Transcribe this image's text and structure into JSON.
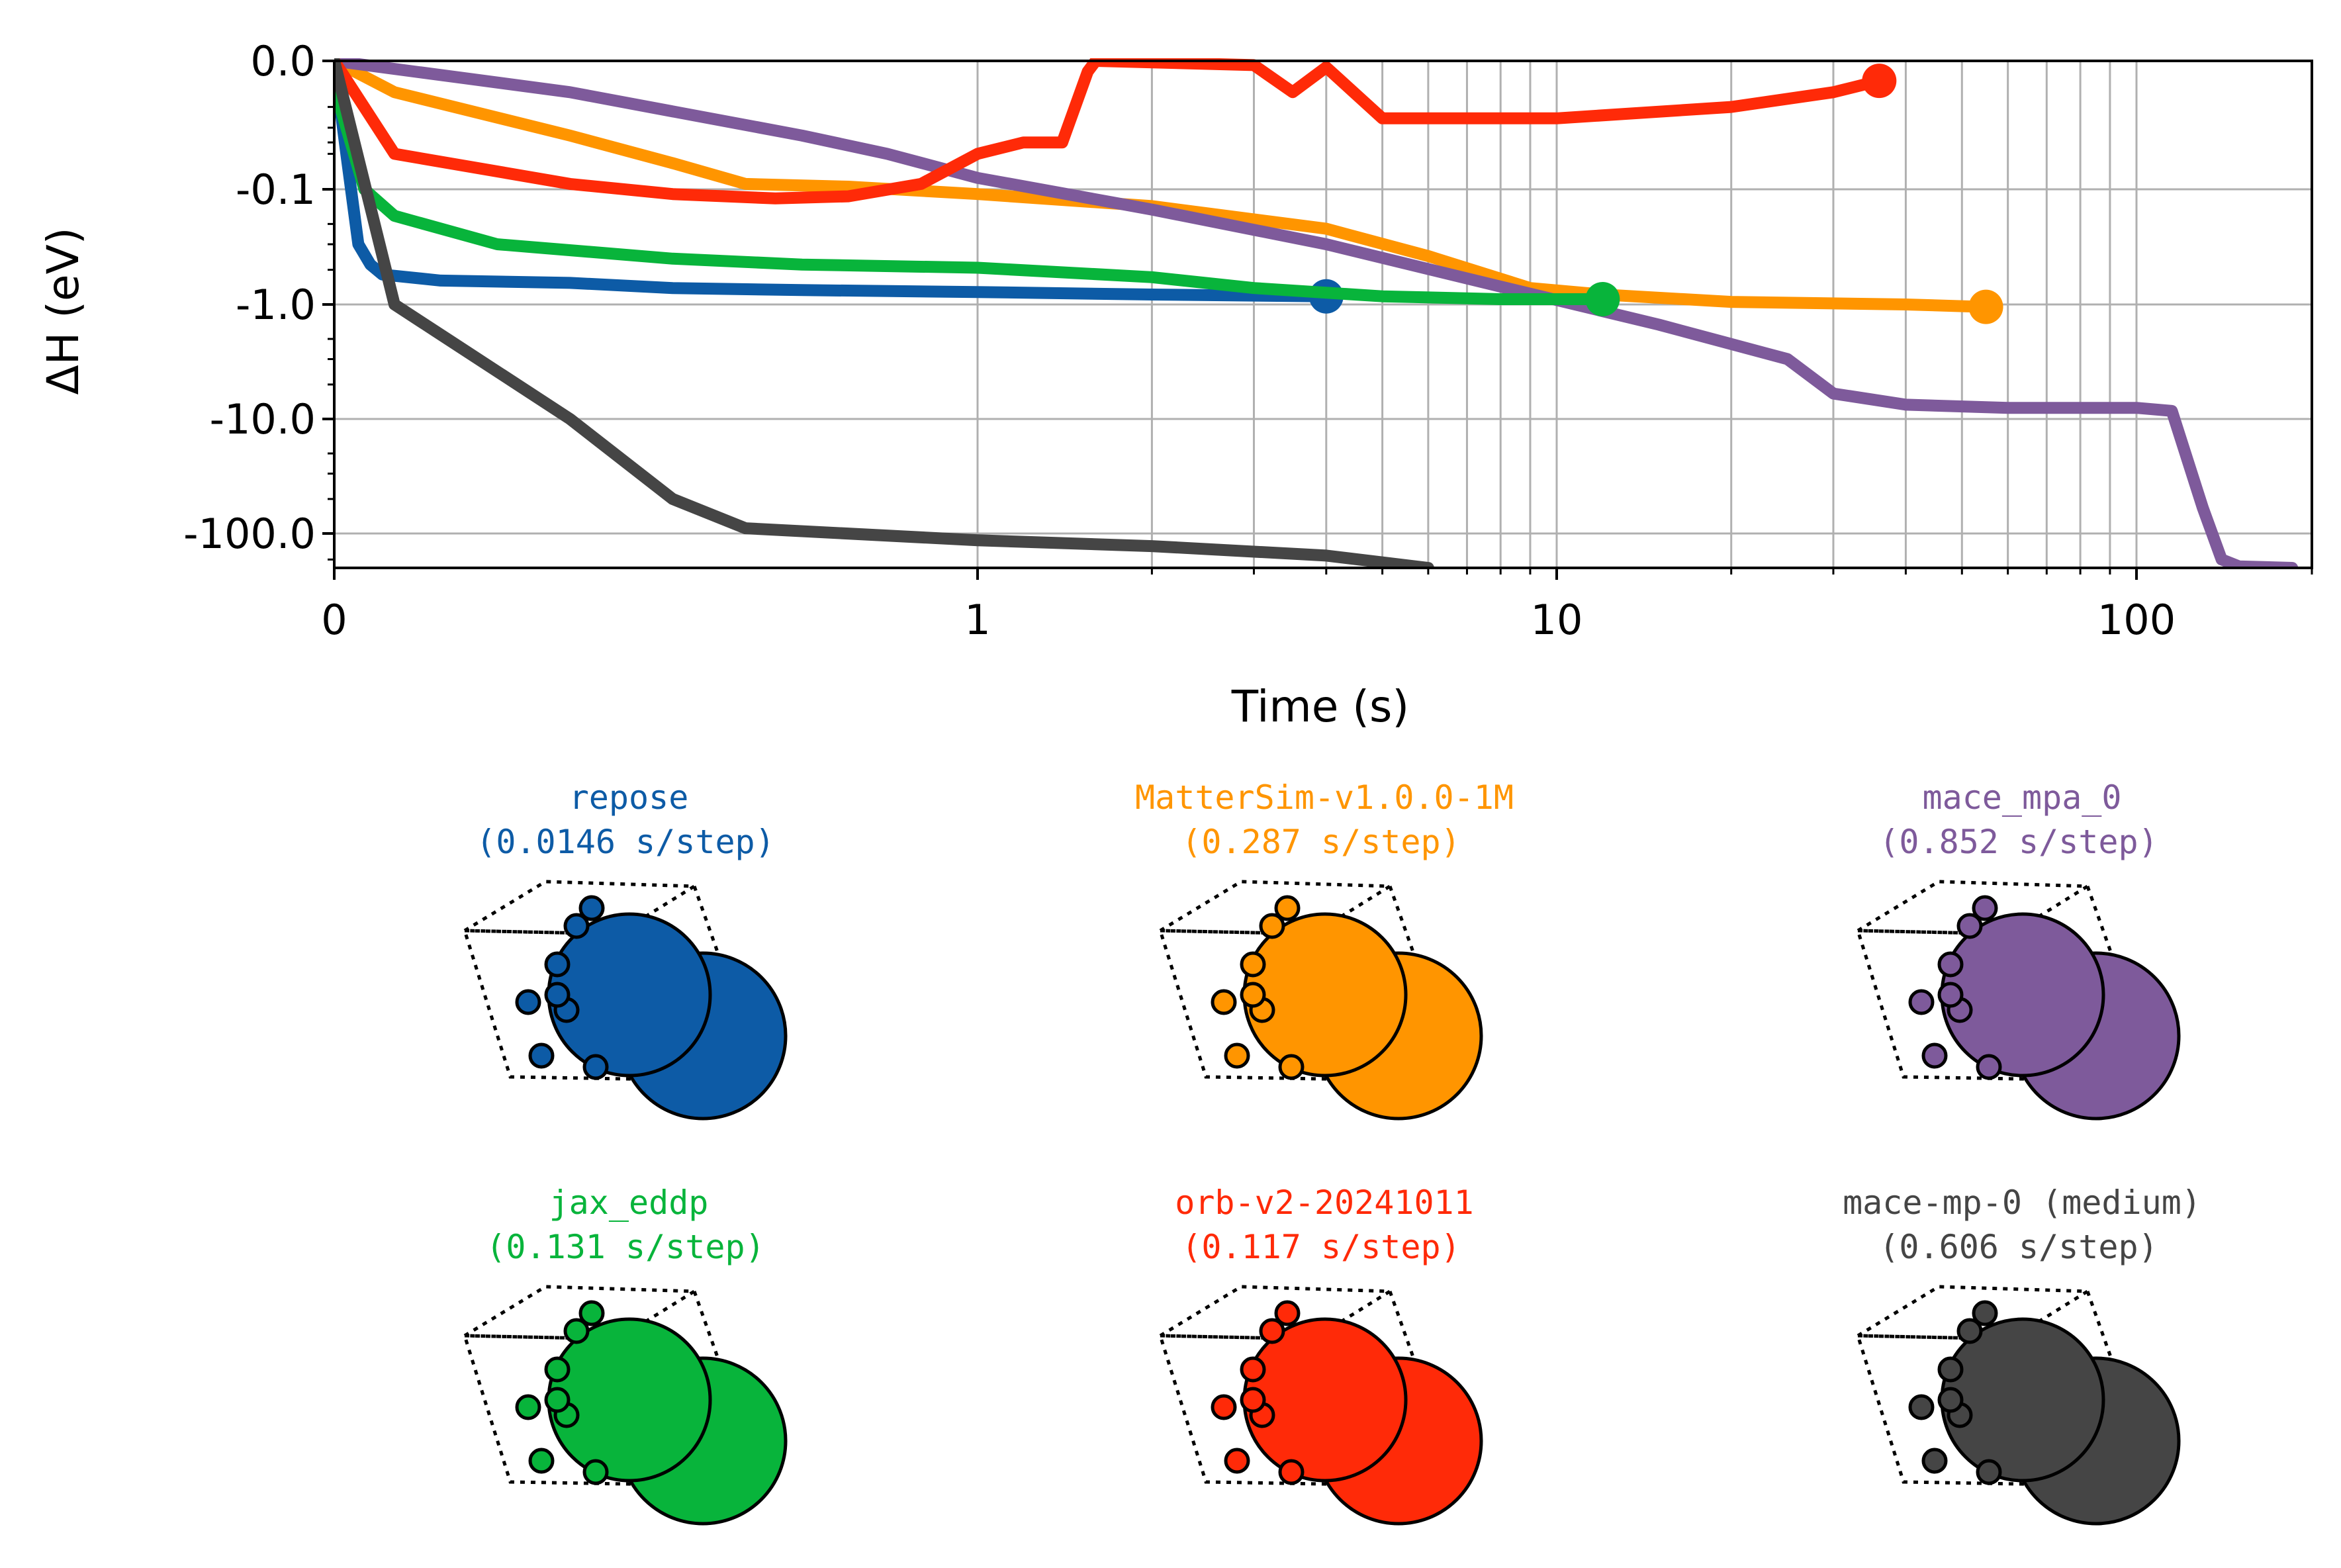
{
  "chart_data": {
    "type": "line",
    "xlabel": "Time (s)",
    "ylabel": "ΔH (eV)",
    "x_scale": "symlog",
    "y_scale": "symlog",
    "xlim": [
      0,
      200
    ],
    "ylim": [
      -250,
      0
    ],
    "grid": true,
    "x_ticks": [
      {
        "v": 0,
        "label": "0"
      },
      {
        "v": 1,
        "label": "1"
      },
      {
        "v": 10,
        "label": "10"
      },
      {
        "v": 100,
        "label": "100"
      }
    ],
    "y_ticks": [
      {
        "v": 0,
        "label": "0.0"
      },
      {
        "v": -0.1,
        "label": "-0.1"
      },
      {
        "v": -1,
        "label": "-1.0"
      },
      {
        "v": -10,
        "label": "-10.0"
      },
      {
        "v": -100,
        "label": "-100.0"
      }
    ],
    "series": [
      {
        "color": "#0d5ba6",
        "end_marker": true,
        "points": [
          [
            0,
            0
          ],
          [
            0.02,
            -0.05
          ],
          [
            0.04,
            -0.3
          ],
          [
            0.06,
            -0.45
          ],
          [
            0.08,
            -0.55
          ],
          [
            0.12,
            -0.62
          ],
          [
            0.2,
            -0.65
          ],
          [
            0.3,
            -0.72
          ],
          [
            0.5,
            -0.75
          ],
          [
            1,
            -0.78
          ],
          [
            2,
            -0.82
          ],
          [
            4,
            -0.85
          ]
        ]
      },
      {
        "color": "#ff9500",
        "end_marker": true,
        "points": [
          [
            0,
            0
          ],
          [
            0.1,
            -0.015
          ],
          [
            0.2,
            -0.035
          ],
          [
            0.3,
            -0.06
          ],
          [
            0.4,
            -0.09
          ],
          [
            0.6,
            -0.095
          ],
          [
            1,
            -0.11
          ],
          [
            2,
            -0.14
          ],
          [
            4,
            -0.22
          ],
          [
            6,
            -0.38
          ],
          [
            9,
            -0.72
          ],
          [
            12,
            -0.82
          ],
          [
            20,
            -0.95
          ],
          [
            40,
            -1.0
          ],
          [
            55,
            -1.05
          ]
        ]
      },
      {
        "color": "#7e5a9b",
        "end_marker": false,
        "points": [
          [
            0,
            0
          ],
          [
            0.2,
            -0.015
          ],
          [
            0.5,
            -0.035
          ],
          [
            0.7,
            -0.05
          ],
          [
            1,
            -0.08
          ],
          [
            2,
            -0.15
          ],
          [
            4,
            -0.3
          ],
          [
            8,
            -0.7
          ],
          [
            15,
            -1.5
          ],
          [
            25,
            -3
          ],
          [
            30,
            -6
          ],
          [
            40,
            -7.5
          ],
          [
            60,
            -8
          ],
          [
            100,
            -8
          ],
          [
            115,
            -8.5
          ],
          [
            130,
            -60
          ],
          [
            140,
            -200
          ],
          [
            150,
            -240
          ],
          [
            185,
            -250
          ]
        ]
      },
      {
        "color": "#08b43b",
        "end_marker": true,
        "points": [
          [
            0,
            0
          ],
          [
            0.01,
            -0.02
          ],
          [
            0.05,
            -0.1
          ],
          [
            0.1,
            -0.17
          ],
          [
            0.15,
            -0.3
          ],
          [
            0.3,
            -0.4
          ],
          [
            0.5,
            -0.45
          ],
          [
            1,
            -0.48
          ],
          [
            2,
            -0.58
          ],
          [
            3,
            -0.72
          ],
          [
            5,
            -0.85
          ],
          [
            8,
            -0.9
          ],
          [
            12,
            -0.9
          ]
        ]
      },
      {
        "color": "#ff2a08",
        "end_marker": true,
        "points": [
          [
            0,
            0
          ],
          [
            0.1,
            -0.05
          ],
          [
            0.2,
            -0.09
          ],
          [
            0.3,
            -0.11
          ],
          [
            0.45,
            -0.12
          ],
          [
            0.6,
            -0.115
          ],
          [
            0.8,
            -0.09
          ],
          [
            1,
            -0.05
          ],
          [
            1.2,
            -0.04
          ],
          [
            1.4,
            -0.04
          ],
          [
            1.55,
            -0.01
          ],
          [
            1.6,
            0
          ],
          [
            3,
            -0.004
          ],
          [
            3.5,
            -0.015
          ],
          [
            4,
            -0.006
          ],
          [
            5,
            -0.025
          ],
          [
            10,
            -0.025
          ],
          [
            20,
            -0.02
          ],
          [
            30,
            -0.015
          ],
          [
            36,
            -0.012
          ]
        ]
      },
      {
        "color": "#454545",
        "end_marker": false,
        "points": [
          [
            0,
            0
          ],
          [
            0.1,
            -1
          ],
          [
            0.2,
            -10
          ],
          [
            0.3,
            -50
          ],
          [
            0.4,
            -90
          ],
          [
            1,
            -120
          ],
          [
            2,
            -140
          ],
          [
            4,
            -180
          ],
          [
            6,
            -250
          ]
        ]
      }
    ],
    "panels": [
      {
        "name": "repose",
        "rate": "(0.0146 s/step)",
        "color": "#0d5ba6"
      },
      {
        "name": "MatterSim-v1.0.0-1M",
        "rate": "(0.287 s/step)",
        "color": "#ff9500"
      },
      {
        "name": "mace_mpa_0",
        "rate": "(0.852 s/step)",
        "color": "#7e5a9b"
      },
      {
        "name": "jax_eddp",
        "rate": "(0.131 s/step)",
        "color": "#08b43b"
      },
      {
        "name": "orb-v2-20241011",
        "rate": "(0.117 s/step)",
        "color": "#ff2a08"
      },
      {
        "name": "mace-mp-0 (medium)",
        "rate": "(0.606 s/step)",
        "color": "#454545"
      }
    ]
  }
}
